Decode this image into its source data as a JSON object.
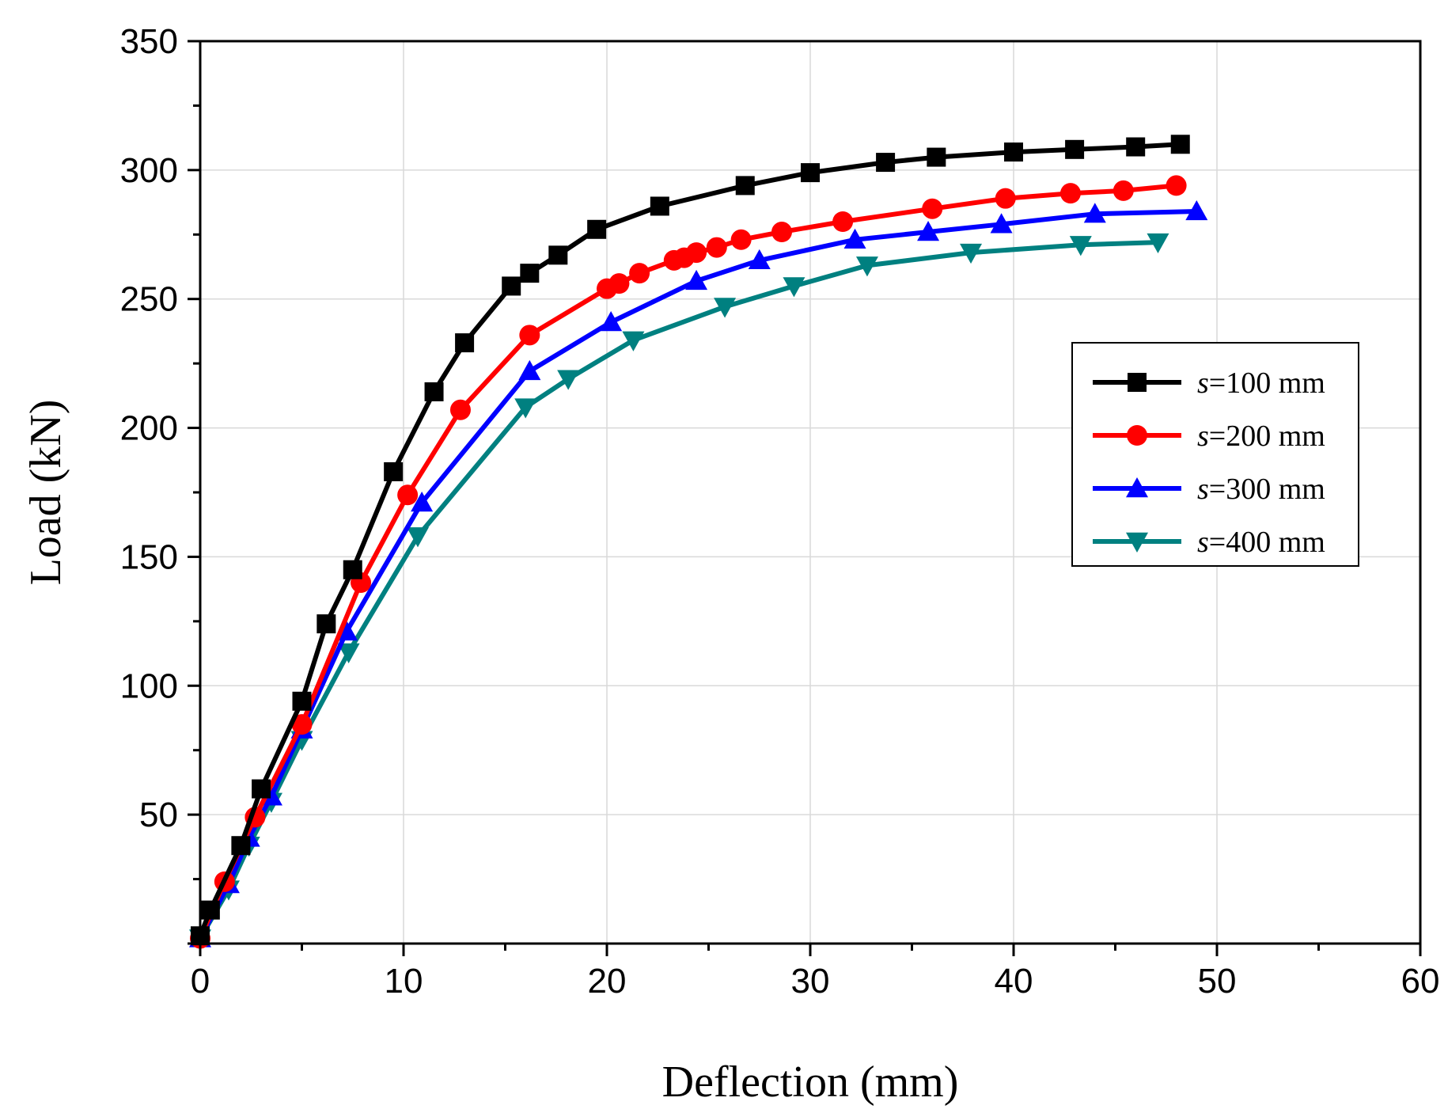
{
  "chart_data": {
    "type": "line",
    "title": "",
    "xlabel": "Deflection (mm)",
    "ylabel": "Load (kN)",
    "xlim": [
      0,
      60
    ],
    "ylim": [
      0,
      350
    ],
    "xticks": [
      0,
      10,
      20,
      30,
      40,
      50,
      60
    ],
    "yticks": [
      50,
      100,
      150,
      200,
      250,
      300,
      350
    ],
    "grid": true,
    "legend_position": "right-middle",
    "series": [
      {
        "name": "s=100 mm",
        "name_italic": "s",
        "name_rest": "=100 mm",
        "color": "#000000",
        "marker": "square",
        "x": [
          0,
          0.5,
          2,
          3,
          5,
          6.2,
          7.5,
          9.5,
          11.5,
          13,
          15.3,
          16.2,
          17.6,
          19.5,
          22.6,
          26.8,
          30,
          33.7,
          36.2,
          40,
          43,
          46,
          48.2
        ],
        "y": [
          3,
          13,
          38,
          60,
          94,
          124,
          145,
          183,
          214,
          233,
          255,
          260,
          267,
          277,
          286,
          294,
          299,
          303,
          305,
          307,
          308,
          309,
          310
        ]
      },
      {
        "name": "s=200 mm",
        "name_italic": "s",
        "name_rest": "=200 mm",
        "color": "#ff0000",
        "marker": "circle",
        "x": [
          0,
          1.2,
          2.7,
          5,
          7.9,
          10.2,
          12.8,
          16.2,
          20,
          20.6,
          21.6,
          23.3,
          23.8,
          24.4,
          25.4,
          26.6,
          28.6,
          31.6,
          36,
          39.6,
          42.8,
          45.4,
          48
        ],
        "y": [
          2,
          24,
          49,
          85,
          140,
          174,
          207,
          236,
          254,
          256,
          260,
          265,
          266,
          268,
          270,
          273,
          276,
          280,
          285,
          289,
          291,
          292,
          294
        ]
      },
      {
        "name": "s=300 mm",
        "name_italic": "s",
        "name_rest": "=300 mm",
        "color": "#0000ff",
        "marker": "triangle-up",
        "x": [
          0,
          1.4,
          2.4,
          3.5,
          5,
          7.2,
          10.9,
          16.2,
          20.2,
          24.4,
          27.5,
          32.2,
          35.8,
          39.4,
          44,
          49
        ],
        "y": [
          2,
          23,
          41,
          57,
          83,
          121,
          171,
          222,
          241,
          257,
          265,
          273,
          276,
          279,
          283,
          284
        ]
      },
      {
        "name": "s=400 mm",
        "name_italic": "s",
        "name_rest": "=400 mm",
        "color": "#008080",
        "marker": "triangle-down",
        "x": [
          0,
          1.4,
          2.4,
          3.5,
          5,
          7.3,
          10.7,
          16,
          18.1,
          21.3,
          25.8,
          29.2,
          32.8,
          37.9,
          43.3,
          47.1
        ],
        "y": [
          2,
          21,
          38,
          55,
          79,
          113,
          158,
          208,
          219,
          234,
          247,
          255,
          263,
          268,
          271,
          272
        ]
      }
    ]
  }
}
